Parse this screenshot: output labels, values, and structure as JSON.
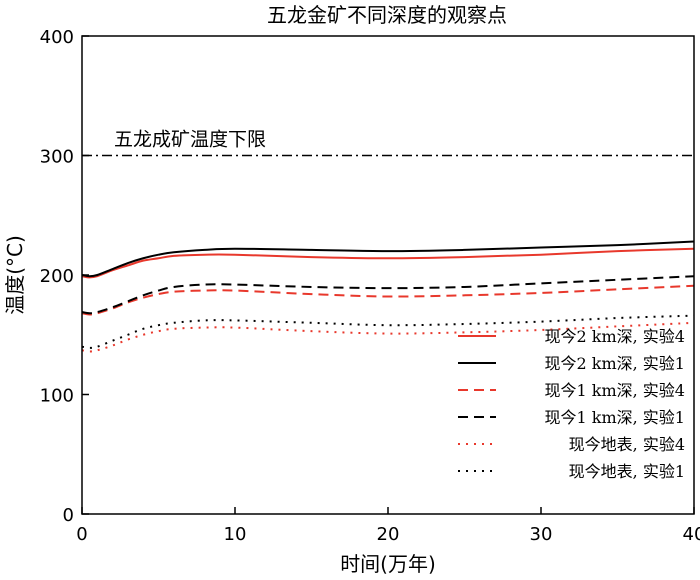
{
  "chart_data": {
    "type": "line",
    "title": "五龙金矿不同深度的观察点",
    "xlabel": "时间(万年)",
    "ylabel": "温度(°C)",
    "xlim": [
      0,
      40
    ],
    "ylim": [
      0,
      400
    ],
    "xticks": [
      0,
      10,
      20,
      30,
      40
    ],
    "yticks": [
      0,
      100,
      200,
      300,
      400
    ],
    "grid": false,
    "legend_position": "bottom-right",
    "reference_line": {
      "y": 300,
      "label": "五龙成矿温度下限",
      "color": "#000000",
      "style": "dash-dot"
    },
    "series": [
      {
        "name": "现今2 km深, 实验4",
        "color": "#e8382c",
        "style": "solid",
        "x": [
          0,
          0.5,
          1,
          2,
          3,
          4,
          5,
          6,
          8,
          10,
          15,
          20,
          25,
          30,
          35,
          40
        ],
        "y": [
          199,
          198,
          199,
          204,
          208,
          212,
          214,
          216,
          217,
          217,
          215,
          214,
          215,
          217,
          220,
          222
        ]
      },
      {
        "name": "现今2 km深, 实验1",
        "color": "#000000",
        "style": "solid",
        "x": [
          0,
          0.5,
          1,
          2,
          3,
          4,
          5,
          6,
          8,
          10,
          15,
          20,
          25,
          30,
          35,
          40
        ],
        "y": [
          200,
          199,
          200,
          205,
          210,
          214,
          217,
          219,
          221,
          222,
          221,
          220,
          221,
          223,
          225,
          228
        ]
      },
      {
        "name": "现今1 km深, 实验4",
        "color": "#e8382c",
        "style": "dashed",
        "x": [
          0,
          0.5,
          1,
          2,
          3,
          4,
          5,
          6,
          8,
          10,
          15,
          20,
          25,
          30,
          35,
          40
        ],
        "y": [
          168,
          167,
          168,
          172,
          177,
          181,
          184,
          186,
          187,
          187,
          184,
          182,
          183,
          185,
          188,
          191
        ]
      },
      {
        "name": "现今1 km深, 实验1",
        "color": "#000000",
        "style": "dashed",
        "x": [
          0,
          0.5,
          1,
          2,
          3,
          4,
          5,
          6,
          8,
          10,
          15,
          20,
          25,
          30,
          35,
          40
        ],
        "y": [
          169,
          168,
          169,
          173,
          178,
          183,
          187,
          190,
          192,
          192,
          190,
          189,
          190,
          193,
          196,
          199
        ]
      },
      {
        "name": "现今地表, 实验4",
        "color": "#e8382c",
        "style": "dotted",
        "x": [
          0,
          0.5,
          1,
          2,
          3,
          4,
          5,
          6,
          8,
          10,
          15,
          20,
          25,
          30,
          35,
          40
        ],
        "y": [
          137,
          136,
          137,
          141,
          146,
          150,
          153,
          155,
          156,
          156,
          153,
          151,
          152,
          154,
          157,
          160
        ]
      },
      {
        "name": "现今地表, 实验1",
        "color": "#000000",
        "style": "dotted",
        "x": [
          0,
          0.5,
          1,
          2,
          3,
          4,
          5,
          6,
          8,
          10,
          15,
          20,
          25,
          30,
          35,
          40
        ],
        "y": [
          140,
          139,
          140,
          145,
          150,
          155,
          158,
          160,
          162,
          162,
          160,
          158,
          159,
          161,
          164,
          166
        ]
      }
    ]
  }
}
